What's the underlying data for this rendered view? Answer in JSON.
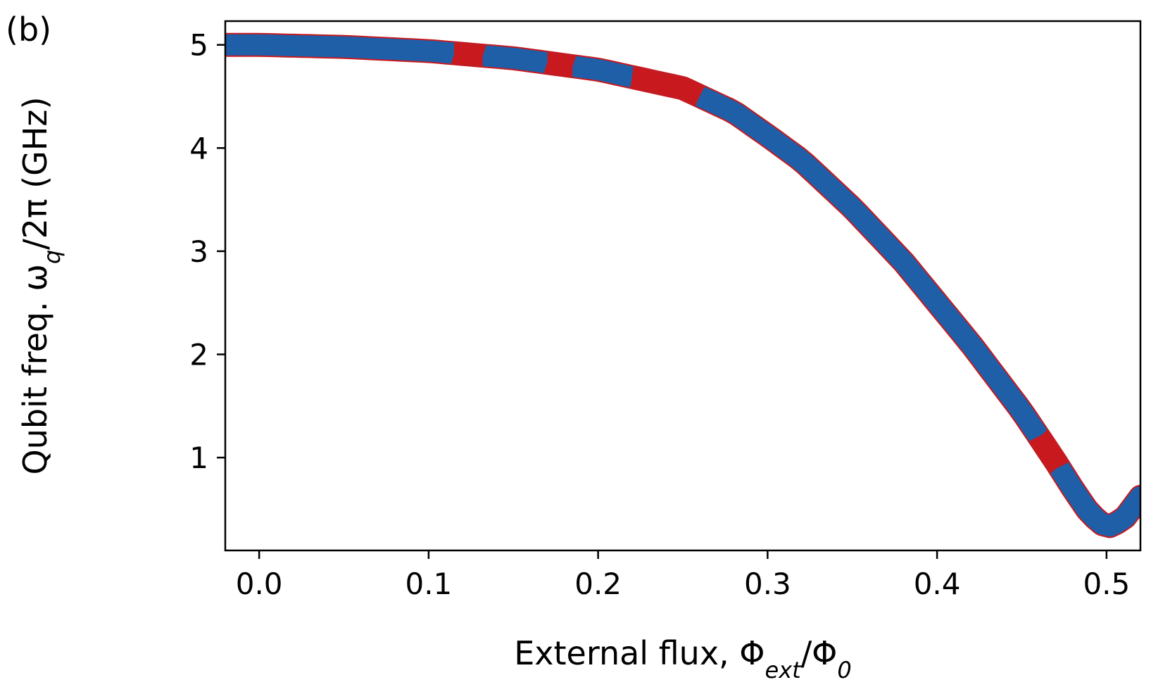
{
  "panel_label": "(b)",
  "chart_data": {
    "type": "line",
    "xlabel_parts": [
      "External flux, Φ",
      "ext",
      "/Φ",
      "0"
    ],
    "ylabel_parts": [
      "Qubit freq. ω",
      "q",
      "/2π (GHz)"
    ],
    "xlim": [
      -0.02,
      0.52
    ],
    "ylim": [
      0.1,
      5.23
    ],
    "x_ticks": [
      0.0,
      0.1,
      0.2,
      0.3,
      0.4,
      0.5
    ],
    "x_tick_labels": [
      "0.0",
      "0.1",
      "0.2",
      "0.3",
      "0.4",
      "0.5"
    ],
    "y_ticks": [
      1,
      2,
      3,
      4,
      5
    ],
    "y_tick_labels": [
      "1",
      "2",
      "3",
      "4",
      "5"
    ],
    "grid": false,
    "colors": {
      "curve": "#1f5fa8",
      "highlight": "#c8191e",
      "axis": "#000000"
    },
    "curve": {
      "x": [
        -0.02,
        0.0,
        0.05,
        0.1,
        0.15,
        0.2,
        0.25,
        0.28,
        0.3,
        0.32,
        0.35,
        0.38,
        0.4,
        0.42,
        0.45,
        0.47,
        0.48,
        0.49,
        0.5,
        0.51,
        0.52
      ],
      "y": [
        5.0,
        5.0,
        4.98,
        4.94,
        4.87,
        4.76,
        4.58,
        4.35,
        4.12,
        3.88,
        3.42,
        2.9,
        2.5,
        2.1,
        1.45,
        0.96,
        0.7,
        0.46,
        0.32,
        0.4,
        0.62
      ]
    },
    "highlight_segments": [
      [
        0.115,
        0.132
      ],
      [
        0.17,
        0.185
      ],
      [
        0.22,
        0.26
      ],
      [
        0.46,
        0.472
      ]
    ]
  }
}
